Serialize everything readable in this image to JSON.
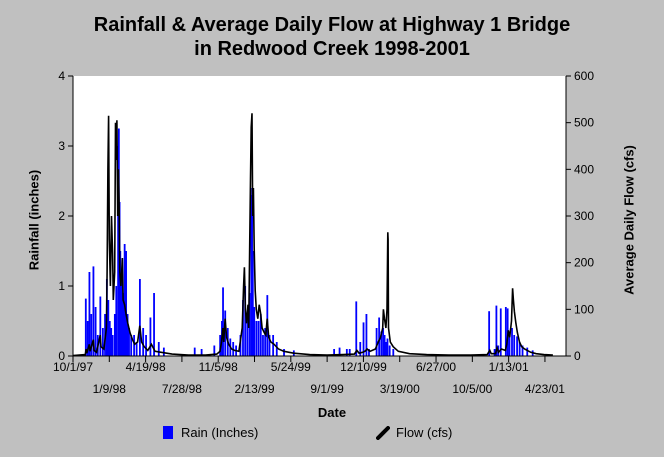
{
  "title_lines": [
    "Rainfall & Average Daily Flow at Highway 1 Bridge",
    "in Redwood Creek 1998-2001"
  ],
  "ylabel_left": "Rainfall (inches)",
  "ylabel_right": "Average Daily Flow (cfs)",
  "xlabel": "Date",
  "legend": {
    "rain": "Rain (Inches)",
    "flow": "Flow (cfs)"
  },
  "colors": {
    "rain": "#0000ff",
    "flow": "#000000",
    "background": "#c0c0c0",
    "plot_area": "#ffffff"
  },
  "chart_data": {
    "type": "bar+line",
    "title": "Rainfall & Average Daily Flow at Highway 1 Bridge in Redwood Creek 1998-2001",
    "xlabel": "Date",
    "ylabel": "Rainfall (inches)",
    "y2label": "Average Daily Flow (cfs)",
    "xlim": [
      "1997-10-01",
      "2001-06-20"
    ],
    "ylim": [
      0,
      4
    ],
    "y2lim": [
      0,
      600
    ],
    "yticks": [
      0,
      1,
      2,
      3,
      4
    ],
    "y2ticks": [
      0,
      100,
      200,
      300,
      400,
      500,
      600
    ],
    "grid": false,
    "legend_position": "bottom",
    "xticks_upper": [
      "10/1/97",
      "4/19/98",
      "11/5/98",
      "5/24/99",
      "12/10/99",
      "6/27/00",
      "1/13/01"
    ],
    "xticks_lower": [
      "1/9/98",
      "7/28/98",
      "2/13/99",
      "9/1/99",
      "3/19/00",
      "10/5/00",
      "4/23/01"
    ],
    "series": [
      {
        "name": "Rain (Inches)",
        "type": "bar",
        "axis": "left",
        "points": [
          [
            "1997-11-05",
            0.82
          ],
          [
            "1997-11-10",
            0.5
          ],
          [
            "1997-11-15",
            1.2
          ],
          [
            "1997-11-20",
            0.6
          ],
          [
            "1997-11-26",
            1.28
          ],
          [
            "1997-12-02",
            0.7
          ],
          [
            "1997-12-08",
            0.3
          ],
          [
            "1997-12-15",
            0.85
          ],
          [
            "1997-12-22",
            0.4
          ],
          [
            "1997-12-28",
            0.6
          ],
          [
            "1998-01-02",
            1.1
          ],
          [
            "1998-01-06",
            0.8
          ],
          [
            "1998-01-10",
            0.5
          ],
          [
            "1998-01-14",
            0.4
          ],
          [
            "1998-01-18",
            0.3
          ],
          [
            "1998-01-24",
            0.6
          ],
          [
            "1998-01-28",
            1.0
          ],
          [
            "1998-02-02",
            3.0
          ],
          [
            "1998-02-04",
            3.25
          ],
          [
            "1998-02-06",
            2.2
          ],
          [
            "1998-02-08",
            1.5
          ],
          [
            "1998-02-12",
            1.2
          ],
          [
            "1998-02-16",
            0.9
          ],
          [
            "1998-02-20",
            1.6
          ],
          [
            "1998-02-24",
            1.5
          ],
          [
            "1998-02-28",
            0.6
          ],
          [
            "1998-03-04",
            0.4
          ],
          [
            "1998-03-10",
            0.3
          ],
          [
            "1998-03-18",
            0.3
          ],
          [
            "1998-03-25",
            0.2
          ],
          [
            "1998-04-03",
            1.1
          ],
          [
            "1998-04-12",
            0.4
          ],
          [
            "1998-04-20",
            0.3
          ],
          [
            "1998-05-02",
            0.55
          ],
          [
            "1998-05-12",
            0.9
          ],
          [
            "1998-05-25",
            0.2
          ],
          [
            "1998-06-08",
            0.12
          ],
          [
            "1998-09-01",
            0.12
          ],
          [
            "1998-09-20",
            0.1
          ],
          [
            "1998-10-25",
            0.15
          ],
          [
            "1998-11-10",
            0.3
          ],
          [
            "1998-11-15",
            0.5
          ],
          [
            "1998-11-18",
            0.98
          ],
          [
            "1998-11-24",
            0.65
          ],
          [
            "1998-12-01",
            0.4
          ],
          [
            "1998-12-08",
            0.25
          ],
          [
            "1998-12-16",
            0.2
          ],
          [
            "1998-12-24",
            0.15
          ],
          [
            "1999-01-05",
            0.3
          ],
          [
            "1999-01-12",
            0.8
          ],
          [
            "1999-01-18",
            1.0
          ],
          [
            "1999-01-24",
            0.6
          ],
          [
            "1999-01-30",
            0.9
          ],
          [
            "1999-02-04",
            2.3
          ],
          [
            "1999-02-06",
            2.4
          ],
          [
            "1999-02-08",
            1.5
          ],
          [
            "1999-02-12",
            0.7
          ],
          [
            "1999-02-18",
            0.5
          ],
          [
            "1999-02-24",
            0.5
          ],
          [
            "1999-03-02",
            0.6
          ],
          [
            "1999-03-08",
            0.3
          ],
          [
            "1999-03-14",
            0.4
          ],
          [
            "1999-03-20",
            0.87
          ],
          [
            "1999-03-26",
            0.3
          ],
          [
            "1999-04-05",
            0.3
          ],
          [
            "1999-04-15",
            0.2
          ],
          [
            "1999-05-05",
            0.1
          ],
          [
            "1999-06-01",
            0.08
          ],
          [
            "1999-09-20",
            0.1
          ],
          [
            "1999-10-05",
            0.12
          ],
          [
            "1999-10-25",
            0.1
          ],
          [
            "1999-11-02",
            0.1
          ],
          [
            "1999-11-20",
            0.78
          ],
          [
            "1999-12-01",
            0.2
          ],
          [
            "1999-12-10",
            0.48
          ],
          [
            "1999-12-18",
            0.6
          ],
          [
            "1999-12-25",
            0.1
          ],
          [
            "2000-01-15",
            0.4
          ],
          [
            "2000-01-22",
            0.55
          ],
          [
            "2000-01-28",
            0.35
          ],
          [
            "2000-02-02",
            0.4
          ],
          [
            "2000-02-06",
            0.3
          ],
          [
            "2000-02-10",
            0.2
          ],
          [
            "2000-02-14",
            0.25
          ],
          [
            "2000-02-20",
            0.15
          ],
          [
            "2000-03-01",
            0.1
          ],
          [
            "2000-11-20",
            0.64
          ],
          [
            "2000-12-05",
            0.1
          ],
          [
            "2000-12-10",
            0.72
          ],
          [
            "2000-12-15",
            0.15
          ],
          [
            "2000-12-22",
            0.68
          ],
          [
            "2001-01-05",
            0.7
          ],
          [
            "2001-01-10",
            0.68
          ],
          [
            "2001-01-15",
            0.3
          ],
          [
            "2001-01-22",
            0.4
          ],
          [
            "2001-01-28",
            0.3
          ],
          [
            "2001-02-05",
            0.28
          ],
          [
            "2001-02-12",
            0.2
          ],
          [
            "2001-02-20",
            0.15
          ],
          [
            "2001-03-05",
            0.12
          ],
          [
            "2001-03-20",
            0.08
          ]
        ]
      },
      {
        "name": "Flow (cfs)",
        "type": "line",
        "axis": "right",
        "points": [
          [
            "1997-10-01",
            1
          ],
          [
            "1997-11-04",
            3
          ],
          [
            "1997-11-06",
            15
          ],
          [
            "1997-11-08",
            6
          ],
          [
            "1997-11-15",
            25
          ],
          [
            "1997-11-17",
            10
          ],
          [
            "1997-11-26",
            35
          ],
          [
            "1997-11-28",
            12
          ],
          [
            "1997-12-05",
            8
          ],
          [
            "1997-12-15",
            45
          ],
          [
            "1997-12-17",
            20
          ],
          [
            "1997-12-25",
            15
          ],
          [
            "1998-01-01",
            60
          ],
          [
            "1998-01-03",
            180
          ],
          [
            "1998-01-05",
            400
          ],
          [
            "1998-01-07",
            515
          ],
          [
            "1998-01-09",
            250
          ],
          [
            "1998-01-12",
            150
          ],
          [
            "1998-01-15",
            300
          ],
          [
            "1998-01-18",
            220
          ],
          [
            "1998-01-20",
            120
          ],
          [
            "1998-01-24",
            180
          ],
          [
            "1998-01-26",
            500
          ],
          [
            "1998-01-28",
            420
          ],
          [
            "1998-01-30",
            505
          ],
          [
            "1998-02-01",
            300
          ],
          [
            "1998-02-03",
            400
          ],
          [
            "1998-02-05",
            330
          ],
          [
            "1998-02-07",
            180
          ],
          [
            "1998-02-10",
            150
          ],
          [
            "1998-02-14",
            210
          ],
          [
            "1998-02-16",
            120
          ],
          [
            "1998-02-20",
            110
          ],
          [
            "1998-02-24",
            90
          ],
          [
            "1998-03-01",
            70
          ],
          [
            "1998-03-07",
            50
          ],
          [
            "1998-03-14",
            35
          ],
          [
            "1998-03-20",
            25
          ],
          [
            "1998-03-28",
            30
          ],
          [
            "1998-04-03",
            65
          ],
          [
            "1998-04-08",
            30
          ],
          [
            "1998-04-15",
            20
          ],
          [
            "1998-04-25",
            12
          ],
          [
            "1998-05-05",
            25
          ],
          [
            "1998-05-15",
            10
          ],
          [
            "1998-06-01",
            8
          ],
          [
            "1998-07-01",
            4
          ],
          [
            "1998-08-15",
            2
          ],
          [
            "1998-10-01",
            2
          ],
          [
            "1998-11-01",
            4
          ],
          [
            "1998-11-10",
            10
          ],
          [
            "1998-11-14",
            30
          ],
          [
            "1998-11-18",
            60
          ],
          [
            "1998-11-20",
            30
          ],
          [
            "1998-11-24",
            80
          ],
          [
            "1998-11-28",
            40
          ],
          [
            "1998-12-04",
            25
          ],
          [
            "1998-12-12",
            15
          ],
          [
            "1998-12-20",
            12
          ],
          [
            "1999-01-01",
            10
          ],
          [
            "1999-01-10",
            60
          ],
          [
            "1999-01-14",
            150
          ],
          [
            "1999-01-16",
            190
          ],
          [
            "1999-01-19",
            100
          ],
          [
            "1999-01-22",
            70
          ],
          [
            "1999-01-26",
            110
          ],
          [
            "1999-01-28",
            60
          ],
          [
            "1999-02-02",
            380
          ],
          [
            "1999-02-04",
            490
          ],
          [
            "1999-02-06",
            520
          ],
          [
            "1999-02-08",
            300
          ],
          [
            "1999-02-10",
            360
          ],
          [
            "1999-02-12",
            230
          ],
          [
            "1999-02-15",
            140
          ],
          [
            "1999-02-18",
            100
          ],
          [
            "1999-02-22",
            80
          ],
          [
            "1999-02-26",
            110
          ],
          [
            "1999-03-02",
            90
          ],
          [
            "1999-03-06",
            60
          ],
          [
            "1999-03-12",
            50
          ],
          [
            "1999-03-16",
            45
          ],
          [
            "1999-03-20",
            80
          ],
          [
            "1999-03-24",
            40
          ],
          [
            "1999-03-30",
            30
          ],
          [
            "1999-04-08",
            25
          ],
          [
            "1999-04-20",
            15
          ],
          [
            "1999-05-05",
            10
          ],
          [
            "1999-06-01",
            6
          ],
          [
            "1999-07-15",
            3
          ],
          [
            "1999-09-01",
            2
          ],
          [
            "1999-10-15",
            3
          ],
          [
            "1999-11-15",
            4
          ],
          [
            "1999-11-22",
            12
          ],
          [
            "1999-11-28",
            6
          ],
          [
            "1999-12-08",
            8
          ],
          [
            "1999-12-14",
            10
          ],
          [
            "1999-12-20",
            15
          ],
          [
            "1999-12-28",
            10
          ],
          [
            "2000-01-12",
            15
          ],
          [
            "2000-01-20",
            30
          ],
          [
            "2000-01-26",
            40
          ],
          [
            "2000-02-01",
            60
          ],
          [
            "2000-02-03",
            100
          ],
          [
            "2000-02-06",
            80
          ],
          [
            "2000-02-10",
            60
          ],
          [
            "2000-02-13",
            100
          ],
          [
            "2000-02-15",
            265
          ],
          [
            "2000-02-16",
            250
          ],
          [
            "2000-02-17",
            60
          ],
          [
            "2000-02-22",
            30
          ],
          [
            "2000-03-01",
            20
          ],
          [
            "2000-03-15",
            10
          ],
          [
            "2000-04-15",
            5
          ],
          [
            "2000-06-01",
            3
          ],
          [
            "2000-08-01",
            2
          ],
          [
            "2000-10-01",
            2
          ],
          [
            "2000-11-15",
            3
          ],
          [
            "2000-11-22",
            12
          ],
          [
            "2000-11-26",
            5
          ],
          [
            "2000-12-08",
            5
          ],
          [
            "2000-12-12",
            18
          ],
          [
            "2000-12-16",
            8
          ],
          [
            "2000-12-24",
            15
          ],
          [
            "2001-01-04",
            12
          ],
          [
            "2001-01-08",
            25
          ],
          [
            "2001-01-12",
            55
          ],
          [
            "2001-01-16",
            40
          ],
          [
            "2001-01-21",
            75
          ],
          [
            "2001-01-24",
            145
          ],
          [
            "2001-01-26",
            120
          ],
          [
            "2001-01-29",
            95
          ],
          [
            "2001-02-02",
            70
          ],
          [
            "2001-02-06",
            50
          ],
          [
            "2001-02-12",
            30
          ],
          [
            "2001-02-18",
            20
          ],
          [
            "2001-02-26",
            15
          ],
          [
            "2001-03-05",
            12
          ],
          [
            "2001-03-15",
            8
          ],
          [
            "2001-03-30",
            5
          ],
          [
            "2001-04-20",
            3
          ],
          [
            "2001-05-15",
            2
          ]
        ]
      }
    ]
  }
}
